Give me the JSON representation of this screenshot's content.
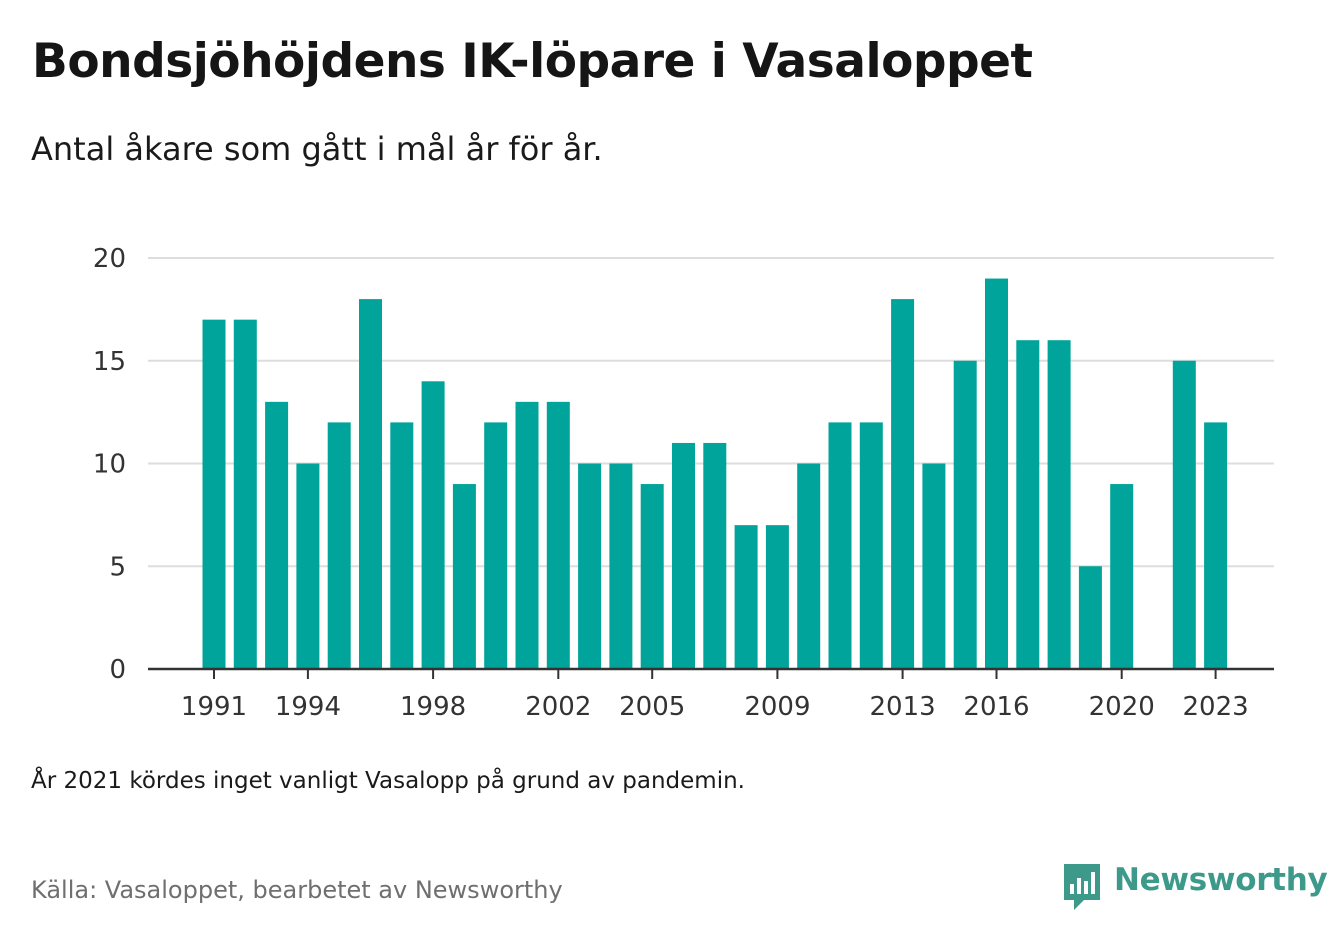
{
  "title": "Bondsjöhöjdens IK-löpare i Vasaloppet",
  "subtitle": "Antal åkare som gått i mål år för år.",
  "note": "År 2021 kördes inget vanligt Vasalopp på grund av pandemin.",
  "source": "Källa: Vasaloppet, bearbetet av Newsworthy",
  "brand": "Newsworthy",
  "colors": {
    "bar": "#00a49a",
    "grid": "#dddddd",
    "axis": "#333333",
    "brand": "#3d9a8b"
  },
  "chart_data": {
    "type": "bar",
    "title": "Bondsjöhöjdens IK-löpare i Vasaloppet",
    "subtitle": "Antal åkare som gått i mål år för år.",
    "xlabel": "",
    "ylabel": "",
    "ylim": [
      0,
      20
    ],
    "yticks": [
      0,
      5,
      10,
      15,
      20
    ],
    "xtick_labels": [
      1991,
      1994,
      1998,
      2002,
      2005,
      2009,
      2013,
      2016,
      2020,
      2023
    ],
    "grid": true,
    "legend": "none",
    "categories": [
      1991,
      1992,
      1993,
      1994,
      1995,
      1996,
      1997,
      1998,
      1999,
      2000,
      2001,
      2002,
      2003,
      2004,
      2005,
      2006,
      2007,
      2008,
      2009,
      2010,
      2011,
      2012,
      2013,
      2014,
      2015,
      2016,
      2017,
      2018,
      2019,
      2020,
      2021,
      2022,
      2023
    ],
    "values": [
      17,
      17,
      13,
      10,
      12,
      18,
      12,
      14,
      9,
      12,
      13,
      13,
      10,
      10,
      9,
      11,
      11,
      7,
      7,
      10,
      12,
      12,
      18,
      10,
      15,
      19,
      16,
      16,
      5,
      9,
      null,
      15,
      12
    ]
  }
}
